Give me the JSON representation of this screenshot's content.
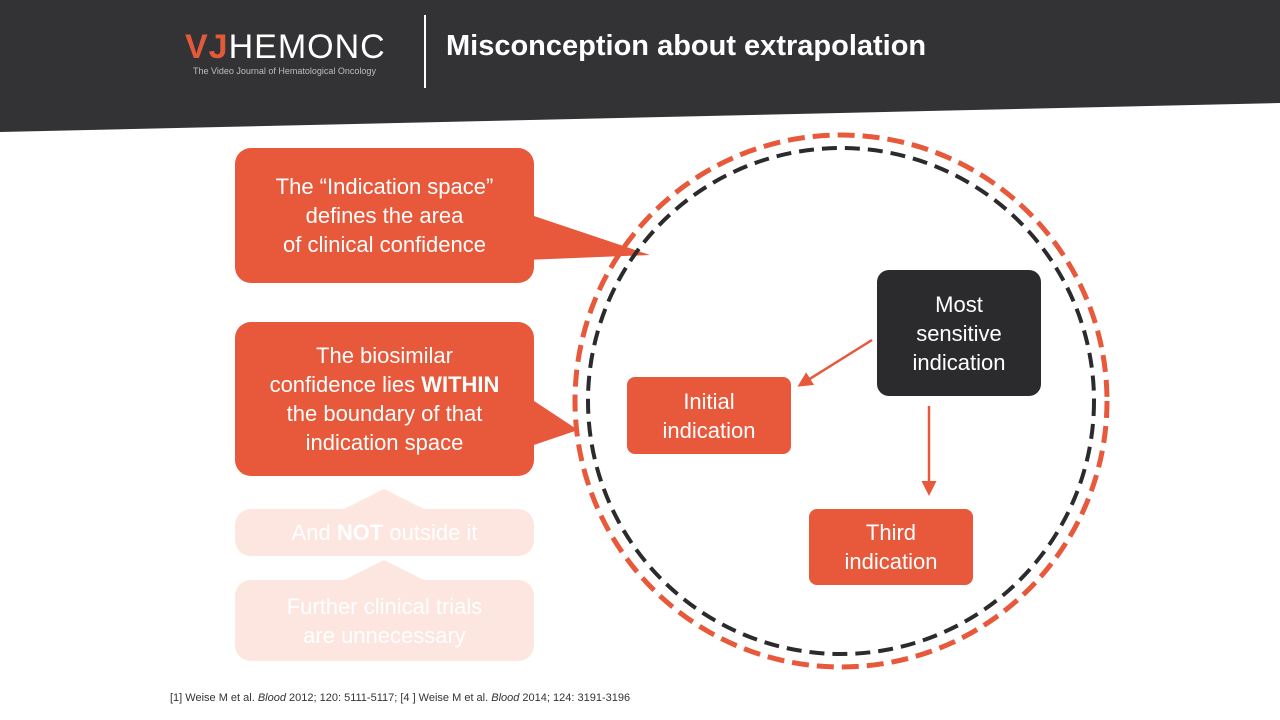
{
  "header": {
    "logo_vj": "VJ",
    "logo_rest": "HEMONC",
    "logo_tagline": "The Video Journal of Hematological Oncology",
    "title": "Misconception about extrapolation"
  },
  "callouts": {
    "indication_space": "The “Indication space”\ndefines the area\nof clinical confidence",
    "biosimilar_pre": "The biosimilar\nconfidence lies ",
    "biosimilar_bold": "WITHIN",
    "biosimilar_post": "\nthe boundary of that\nindication space",
    "not_outside_pre": "And ",
    "not_outside_bold": "NOT",
    "not_outside_post": " outside it",
    "further_trials": "Further clinical trials\nare unnecessary"
  },
  "indications": {
    "initial": "Initial\nindication",
    "most_sensitive": "Most\nsensitive\nindication",
    "third": "Third\nindication"
  },
  "reference": {
    "part1": "[1] Weise M et al. ",
    "journal1": "Blood",
    "part2": " 2012; 120: 5111-5117; [4 ] Weise M et al. ",
    "journal2": "Blood",
    "part3": " 2014; 124: 3191-3196"
  },
  "colors": {
    "accent_orange": "#e8583a",
    "dark": "#2b2b2d",
    "faded": "#fce6df",
    "header_bg": "#333335"
  }
}
